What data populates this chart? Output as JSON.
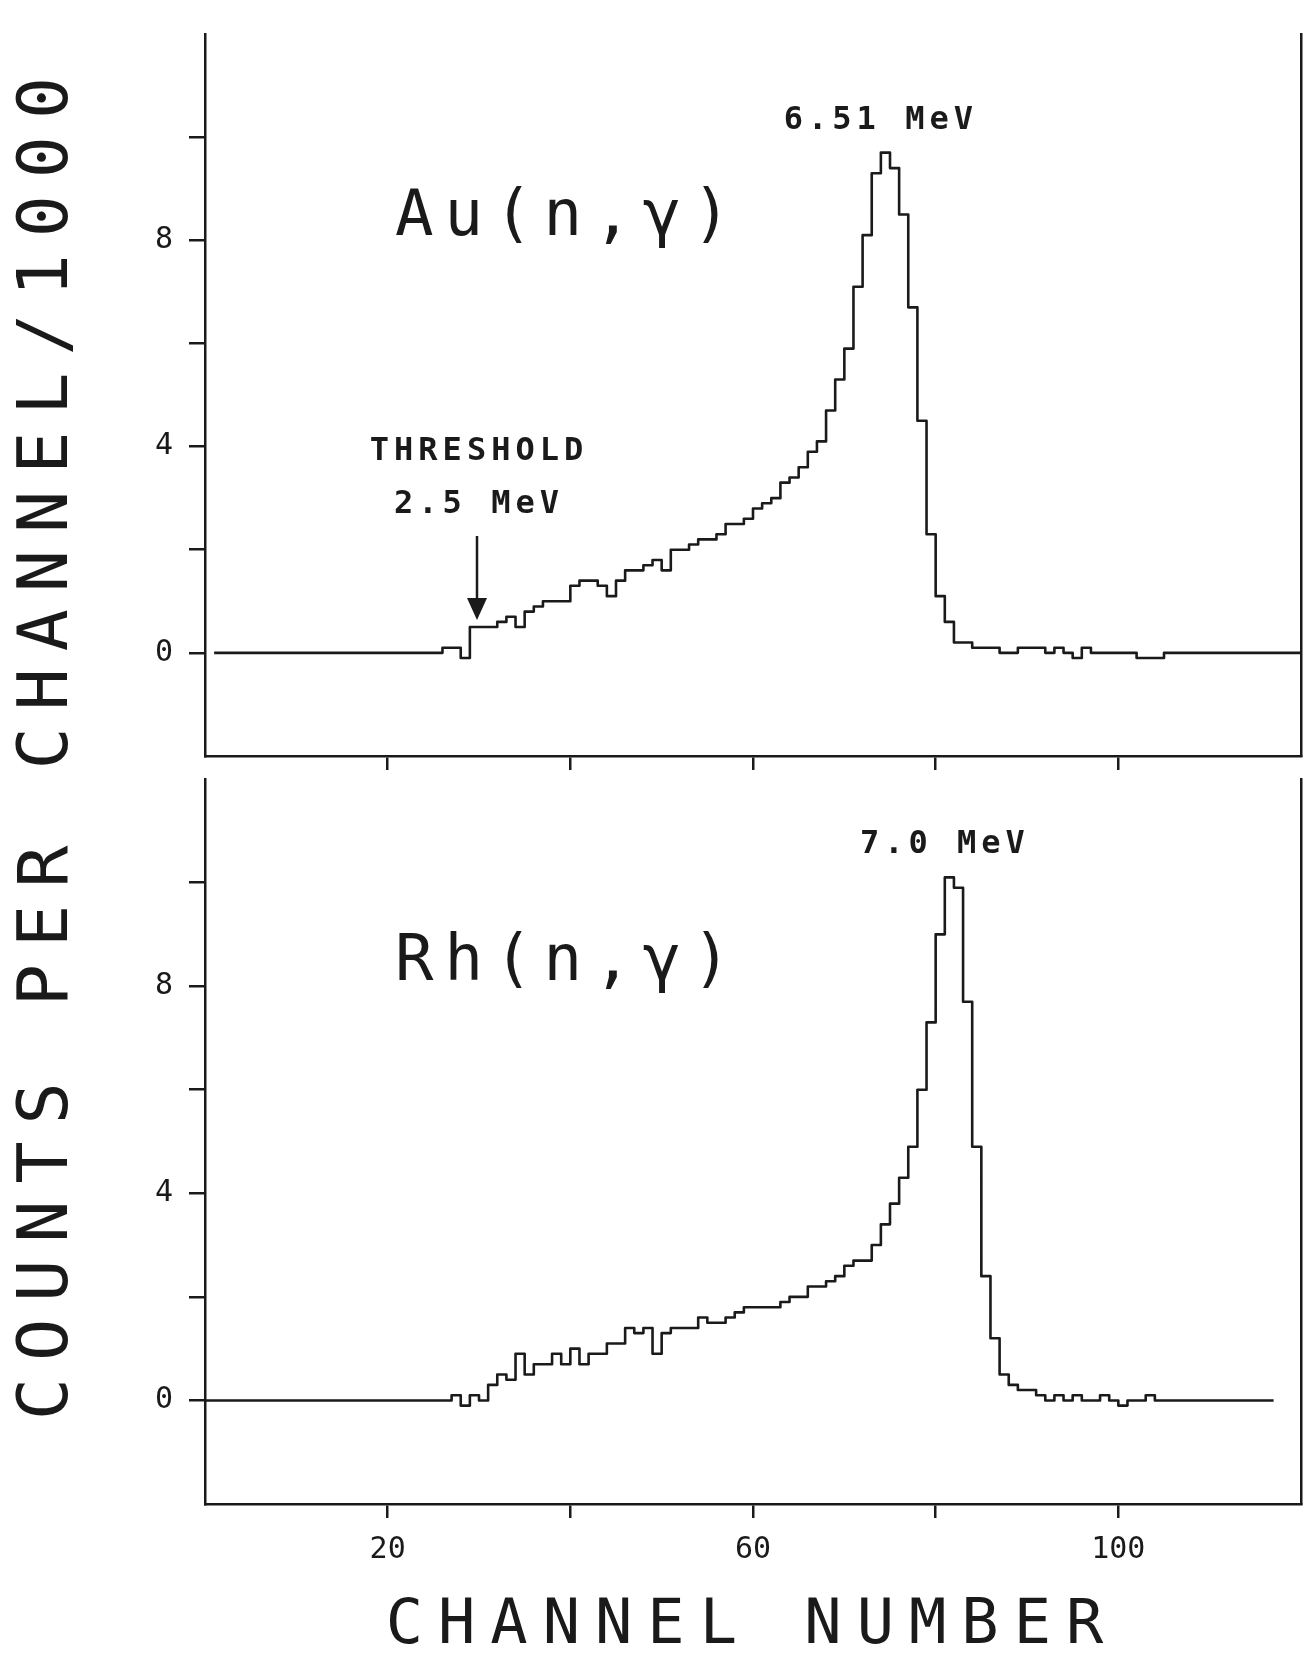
{
  "chart_data": [
    {
      "type": "step",
      "title": "Au(n,γ)",
      "ylabel": "COUNTS PER CHANNEL/1000",
      "color": "#1a1a1a",
      "x": [
        1,
        2,
        3,
        4,
        5,
        6,
        7,
        8,
        9,
        10,
        11,
        12,
        13,
        14,
        15,
        16,
        17,
        18,
        19,
        20,
        21,
        22,
        23,
        24,
        25,
        26,
        27,
        28,
        29,
        30,
        31,
        32,
        33,
        34,
        35,
        36,
        37,
        38,
        39,
        40,
        41,
        42,
        43,
        44,
        45,
        46,
        47,
        48,
        49,
        50,
        51,
        52,
        53,
        54,
        55,
        56,
        57,
        58,
        59,
        60,
        61,
        62,
        63,
        64,
        65,
        66,
        67,
        68,
        69,
        70,
        71,
        72,
        73,
        74,
        75,
        76,
        77,
        78,
        79,
        80,
        81,
        82,
        83,
        84,
        85,
        86,
        87,
        88,
        89,
        90,
        91,
        92,
        93,
        94,
        95,
        96,
        97,
        98,
        99,
        100,
        101,
        102,
        103,
        104,
        105,
        106,
        107,
        108,
        109,
        110,
        111,
        112,
        113,
        114,
        115,
        116,
        117,
        118,
        119,
        120
      ],
      "values": [
        0,
        0,
        0,
        0,
        0,
        0,
        0,
        0,
        0,
        0,
        0,
        0,
        0,
        0,
        0,
        0,
        0,
        0,
        0,
        0,
        0,
        0,
        0,
        0,
        0,
        0.1,
        0.1,
        -0.1,
        0.5,
        0.5,
        0.5,
        0.6,
        0.7,
        0.5,
        0.8,
        0.9,
        1.0,
        1.0,
        1.0,
        1.3,
        1.4,
        1.4,
        1.3,
        1.1,
        1.4,
        1.6,
        1.6,
        1.7,
        1.8,
        1.6,
        2.0,
        2.0,
        2.1,
        2.2,
        2.2,
        2.3,
        2.5,
        2.5,
        2.6,
        2.8,
        2.9,
        3.0,
        3.3,
        3.4,
        3.6,
        3.9,
        4.1,
        4.7,
        5.3,
        5.9,
        7.1,
        8.1,
        9.3,
        9.7,
        9.4,
        8.5,
        6.7,
        4.5,
        2.3,
        1.1,
        0.6,
        0.2,
        0.2,
        0.1,
        0.1,
        0.1,
        0,
        0,
        0.1,
        0.1,
        0.1,
        0,
        0.1,
        0,
        -0.1,
        0.1,
        0,
        0,
        0,
        0,
        0,
        -0.1,
        -0.1,
        -0.1,
        0,
        0,
        0,
        0,
        0,
        0,
        0,
        0,
        0,
        0,
        0,
        0,
        0,
        0,
        0,
        0
      ],
      "xlim": [
        0,
        120
      ],
      "ylim": [
        -2,
        12
      ],
      "xticks": [
        20,
        40,
        60,
        80,
        100
      ],
      "yticks": [
        0,
        {
          "value": 2,
          "label": null
        },
        4,
        {
          "value": 6,
          "label": null
        },
        8,
        {
          "value": 10,
          "label": null
        }
      ],
      "tick_labels": "y",
      "annotations": [
        {
          "text": "6.51 MeV",
          "x": 74,
          "y": 9.7
        },
        "THRESHOLD\n2.5 MeV"
      ]
    },
    {
      "type": "step",
      "title": "Rh(n,γ)",
      "xlabel": "CHANNEL NUMBER",
      "color": "#1a1a1a",
      "x": [
        0,
        1,
        2,
        3,
        4,
        5,
        6,
        7,
        8,
        9,
        10,
        11,
        12,
        13,
        14,
        15,
        16,
        17,
        18,
        19,
        20,
        21,
        22,
        23,
        24,
        25,
        26,
        27,
        28,
        29,
        30,
        31,
        32,
        33,
        34,
        35,
        36,
        37,
        38,
        39,
        40,
        41,
        42,
        43,
        44,
        45,
        46,
        47,
        48,
        49,
        50,
        51,
        52,
        53,
        54,
        55,
        56,
        57,
        58,
        59,
        60,
        61,
        62,
        63,
        64,
        65,
        66,
        67,
        68,
        69,
        70,
        71,
        72,
        73,
        74,
        75,
        76,
        77,
        78,
        79,
        80,
        81,
        82,
        83,
        84,
        85,
        86,
        87,
        88,
        89,
        90,
        91,
        92,
        93,
        94,
        95,
        96,
        97,
        98,
        99,
        100,
        101,
        102,
        103,
        104,
        105,
        106,
        107,
        108,
        109,
        110,
        111,
        112,
        113,
        114,
        115,
        116,
        117
      ],
      "values": [
        0,
        0,
        0,
        0,
        0,
        0,
        0,
        0,
        0,
        0,
        0,
        0,
        0,
        0,
        0,
        0,
        0,
        0,
        0,
        0,
        0,
        0,
        0,
        0,
        0,
        0,
        0,
        0.1,
        -0.1,
        0.1,
        0,
        0.3,
        0.5,
        0.4,
        0.9,
        0.5,
        0.7,
        0.7,
        0.9,
        0.7,
        1.0,
        0.7,
        0.9,
        0.9,
        1.1,
        1.1,
        1.4,
        1.3,
        1.4,
        0.9,
        1.3,
        1.4,
        1.4,
        1.4,
        1.6,
        1.5,
        1.5,
        1.6,
        1.7,
        1.8,
        1.8,
        1.8,
        1.8,
        1.9,
        2.0,
        2.0,
        2.2,
        2.2,
        2.3,
        2.4,
        2.6,
        2.7,
        2.7,
        3.0,
        3.4,
        3.8,
        4.3,
        4.9,
        6.0,
        7.3,
        9.0,
        10.1,
        9.9,
        7.7,
        4.9,
        2.4,
        1.2,
        0.5,
        0.3,
        0.2,
        0.2,
        0.1,
        0,
        0.1,
        0,
        0.1,
        0,
        0,
        0.1,
        0,
        -0.1,
        0,
        0,
        0.1,
        0,
        0,
        0,
        0,
        0,
        0,
        0,
        0,
        0,
        0,
        0,
        0,
        0,
        0
      ],
      "xlim": [
        0,
        120
      ],
      "ylim": [
        -2,
        12
      ],
      "xticks": [
        20,
        {
          "value": 40,
          "label": null
        },
        60,
        {
          "value": 80,
          "label": null
        },
        100
      ],
      "yticks": [
        0,
        {
          "value": 2,
          "label": null
        },
        4,
        {
          "value": 6,
          "label": null
        },
        8,
        {
          "value": 10,
          "label": null
        }
      ],
      "annotations": [
        {
          "text": "7.0 MeV",
          "x": 81,
          "y": 10.1
        }
      ]
    }
  ]
}
